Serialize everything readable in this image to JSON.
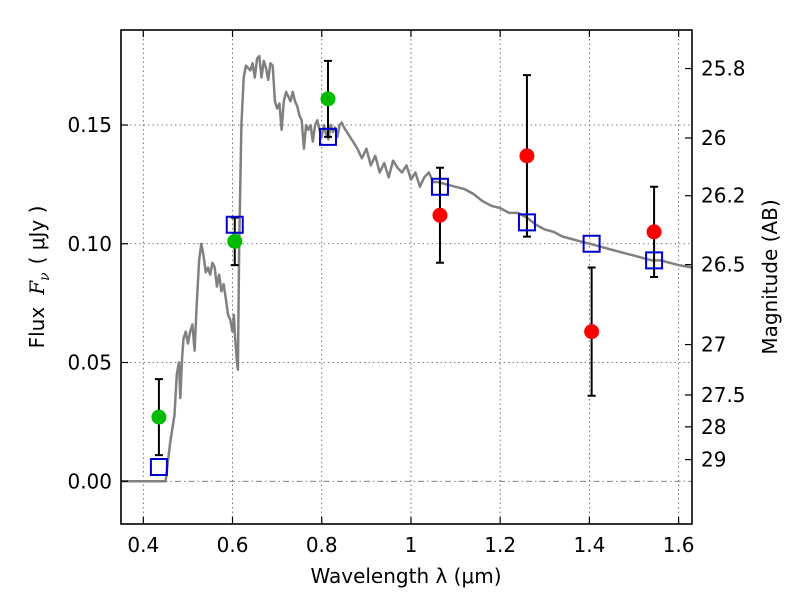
{
  "chart_data": {
    "type": "scatter",
    "xlabel": "Wavelength  λ (μm)",
    "ylabel_text": "Flux",
    "ylabel_symbol": "F",
    "ylabel_subscript": "ν",
    "ylabel_unit": "( μJy )",
    "y2label": "Magnitude (AB)",
    "xlim": [
      0.35,
      1.63
    ],
    "ylim": [
      -0.018,
      0.19
    ],
    "grid": true,
    "x_ticks": [
      {
        "value": 0.4,
        "label": "0.4"
      },
      {
        "value": 0.6,
        "label": "0.6"
      },
      {
        "value": 0.8,
        "label": "0.8"
      },
      {
        "value": 1.0,
        "label": "1"
      },
      {
        "value": 1.2,
        "label": "1.2"
      },
      {
        "value": 1.4,
        "label": "1.4"
      },
      {
        "value": 1.6,
        "label": "1.6"
      }
    ],
    "y_ticks": [
      {
        "value": 0.0,
        "label": "0.00"
      },
      {
        "value": 0.05,
        "label": "0.05"
      },
      {
        "value": 0.1,
        "label": "0.10"
      },
      {
        "value": 0.15,
        "label": "0.15"
      }
    ],
    "y2_ticks": [
      {
        "value": 25.8,
        "label": "25.8"
      },
      {
        "value": 26,
        "label": "26"
      },
      {
        "value": 26.2,
        "label": "26.2"
      },
      {
        "value": 26.5,
        "label": "26.5"
      },
      {
        "value": 27,
        "label": "27"
      },
      {
        "value": 27.5,
        "label": "27.5"
      },
      {
        "value": 28,
        "label": "28"
      },
      {
        "value": 29,
        "label": "29"
      }
    ],
    "model_spectrum": {
      "color": "#808080",
      "points": [
        [
          0.35,
          0.0
        ],
        [
          0.44,
          0.0
        ],
        [
          0.45,
          0.0
        ],
        [
          0.46,
          0.016
        ],
        [
          0.47,
          0.028
        ],
        [
          0.475,
          0.045
        ],
        [
          0.48,
          0.05
        ],
        [
          0.483,
          0.035
        ],
        [
          0.487,
          0.052
        ],
        [
          0.49,
          0.06
        ],
        [
          0.495,
          0.063
        ],
        [
          0.5,
          0.058
        ],
        [
          0.505,
          0.063
        ],
        [
          0.51,
          0.066
        ],
        [
          0.515,
          0.055
        ],
        [
          0.52,
          0.075
        ],
        [
          0.525,
          0.093
        ],
        [
          0.53,
          0.1
        ],
        [
          0.535,
          0.095
        ],
        [
          0.54,
          0.088
        ],
        [
          0.545,
          0.09
        ],
        [
          0.55,
          0.087
        ],
        [
          0.555,
          0.092
        ],
        [
          0.56,
          0.09
        ],
        [
          0.565,
          0.082
        ],
        [
          0.57,
          0.087
        ],
        [
          0.575,
          0.08
        ],
        [
          0.58,
          0.083
        ],
        [
          0.585,
          0.077
        ],
        [
          0.59,
          0.07
        ],
        [
          0.595,
          0.068
        ],
        [
          0.6,
          0.063
        ],
        [
          0.603,
          0.07
        ],
        [
          0.606,
          0.06
        ],
        [
          0.61,
          0.05
        ],
        [
          0.612,
          0.047
        ],
        [
          0.615,
          0.1
        ],
        [
          0.62,
          0.15
        ],
        [
          0.625,
          0.17
        ],
        [
          0.63,
          0.175
        ],
        [
          0.64,
          0.173
        ],
        [
          0.645,
          0.176
        ],
        [
          0.65,
          0.17
        ],
        [
          0.655,
          0.178
        ],
        [
          0.66,
          0.179
        ],
        [
          0.665,
          0.17
        ],
        [
          0.67,
          0.177
        ],
        [
          0.675,
          0.174
        ],
        [
          0.68,
          0.169
        ],
        [
          0.685,
          0.176
        ],
        [
          0.69,
          0.175
        ],
        [
          0.695,
          0.16
        ],
        [
          0.7,
          0.157
        ],
        [
          0.705,
          0.159
        ],
        [
          0.71,
          0.148
        ],
        [
          0.715,
          0.16
        ],
        [
          0.72,
          0.164
        ],
        [
          0.725,
          0.162
        ],
        [
          0.73,
          0.16
        ],
        [
          0.735,
          0.164
        ],
        [
          0.74,
          0.16
        ],
        [
          0.745,
          0.158
        ],
        [
          0.75,
          0.154
        ],
        [
          0.755,
          0.152
        ],
        [
          0.76,
          0.14
        ],
        [
          0.765,
          0.15
        ],
        [
          0.77,
          0.148
        ],
        [
          0.775,
          0.15
        ],
        [
          0.78,
          0.143
        ],
        [
          0.785,
          0.15
        ],
        [
          0.79,
          0.152
        ],
        [
          0.795,
          0.148
        ],
        [
          0.8,
          0.145
        ],
        [
          0.805,
          0.15
        ],
        [
          0.81,
          0.146
        ],
        [
          0.815,
          0.144
        ],
        [
          0.82,
          0.15
        ],
        [
          0.825,
          0.147
        ],
        [
          0.83,
          0.149
        ],
        [
          0.835,
          0.145
        ],
        [
          0.84,
          0.15
        ],
        [
          0.845,
          0.151
        ],
        [
          0.85,
          0.149
        ],
        [
          0.86,
          0.146
        ],
        [
          0.87,
          0.143
        ],
        [
          0.88,
          0.14
        ],
        [
          0.89,
          0.136
        ],
        [
          0.9,
          0.14
        ],
        [
          0.91,
          0.133
        ],
        [
          0.92,
          0.137
        ],
        [
          0.93,
          0.13
        ],
        [
          0.94,
          0.134
        ],
        [
          0.95,
          0.128
        ],
        [
          0.96,
          0.135
        ],
        [
          0.97,
          0.132
        ],
        [
          0.98,
          0.13
        ],
        [
          0.99,
          0.133
        ],
        [
          1.0,
          0.127
        ],
        [
          1.01,
          0.13
        ],
        [
          1.02,
          0.124
        ],
        [
          1.03,
          0.128
        ],
        [
          1.04,
          0.13
        ],
        [
          1.05,
          0.126
        ],
        [
          1.06,
          0.126
        ],
        [
          1.08,
          0.125
        ],
        [
          1.1,
          0.124
        ],
        [
          1.12,
          0.123
        ],
        [
          1.14,
          0.121
        ],
        [
          1.16,
          0.118
        ],
        [
          1.18,
          0.116
        ],
        [
          1.2,
          0.115
        ],
        [
          1.22,
          0.113
        ],
        [
          1.24,
          0.113
        ],
        [
          1.26,
          0.111
        ],
        [
          1.28,
          0.108
        ],
        [
          1.3,
          0.106
        ],
        [
          1.32,
          0.105
        ],
        [
          1.34,
          0.103
        ],
        [
          1.36,
          0.102
        ],
        [
          1.38,
          0.101
        ],
        [
          1.4,
          0.1
        ],
        [
          1.42,
          0.099
        ],
        [
          1.44,
          0.098
        ],
        [
          1.46,
          0.097
        ],
        [
          1.48,
          0.096
        ],
        [
          1.5,
          0.095
        ],
        [
          1.52,
          0.094
        ],
        [
          1.54,
          0.093
        ],
        [
          1.56,
          0.093
        ],
        [
          1.58,
          0.092
        ],
        [
          1.6,
          0.091
        ],
        [
          1.63,
          0.09
        ]
      ]
    },
    "model_bandpass": {
      "color": "#0000cc",
      "points": [
        {
          "x": 0.435,
          "y": 0.006
        },
        {
          "x": 0.605,
          "y": 0.108
        },
        {
          "x": 0.814,
          "y": 0.145
        },
        {
          "x": 1.065,
          "y": 0.124
        },
        {
          "x": 1.26,
          "y": 0.109
        },
        {
          "x": 1.405,
          "y": 0.1
        },
        {
          "x": 1.545,
          "y": 0.093
        }
      ]
    },
    "series": [
      {
        "color": "#00bb00",
        "points": [
          {
            "x": 0.435,
            "y": 0.027,
            "err_low": 0.011,
            "err_high": 0.043
          },
          {
            "x": 0.605,
            "y": 0.101,
            "err_low": 0.091,
            "err_high": 0.111
          },
          {
            "x": 0.814,
            "y": 0.161,
            "err_low": 0.145,
            "err_high": 0.177
          }
        ]
      },
      {
        "color": "#ff0000",
        "points": [
          {
            "x": 1.065,
            "y": 0.112,
            "err_low": 0.092,
            "err_high": 0.132
          },
          {
            "x": 1.26,
            "y": 0.137,
            "err_low": 0.103,
            "err_high": 0.171
          },
          {
            "x": 1.405,
            "y": 0.063,
            "err_low": 0.036,
            "err_high": 0.09
          },
          {
            "x": 1.545,
            "y": 0.105,
            "err_low": 0.086,
            "err_high": 0.124
          }
        ]
      }
    ]
  }
}
